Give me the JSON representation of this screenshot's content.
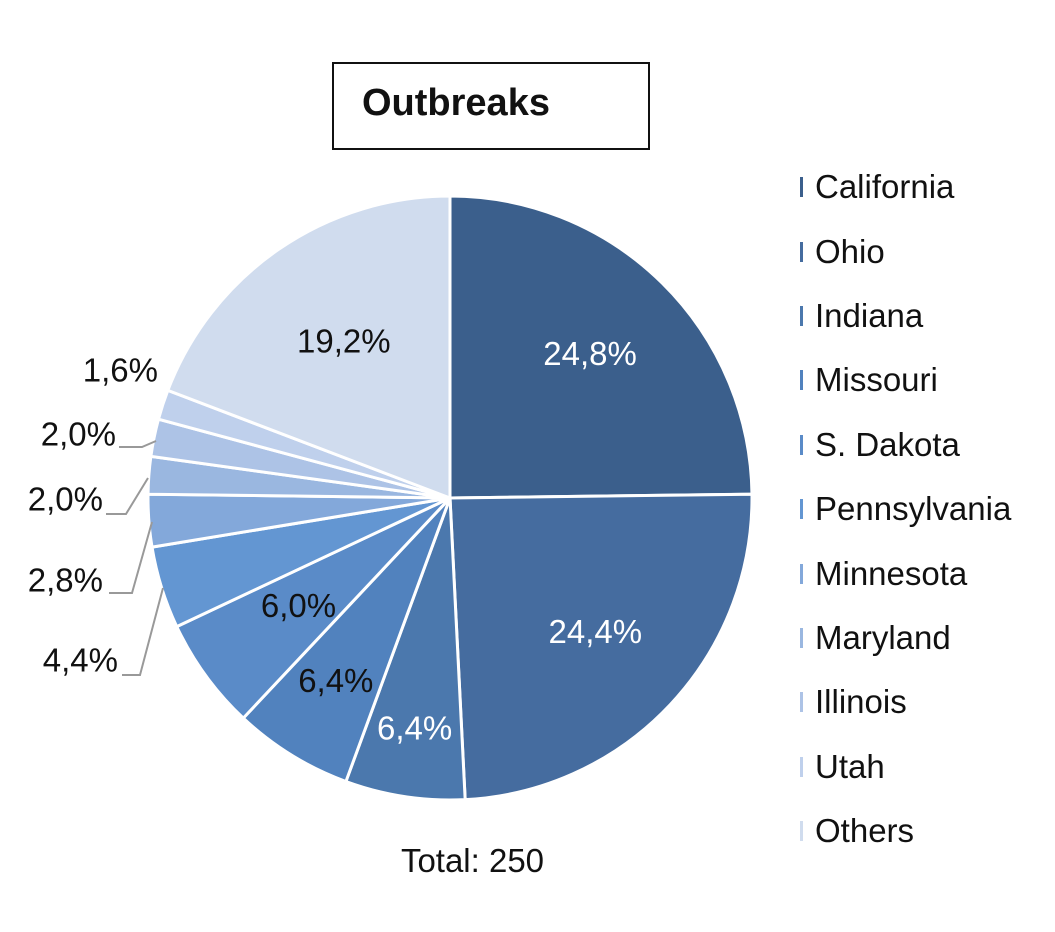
{
  "chart_data": {
    "type": "pie",
    "title": "Outbreaks",
    "total_label": "Total: 250",
    "categories": [
      "California",
      "Ohio",
      "Indiana",
      "Missouri",
      "S. Dakota",
      "Pennsylvania",
      "Minnesota",
      "Maryland",
      "Illinois",
      "Utah",
      "Others"
    ],
    "values": [
      24.8,
      24.4,
      6.4,
      6.4,
      6.0,
      4.4,
      2.8,
      2.0,
      2.0,
      1.6,
      19.2
    ],
    "data_labels": [
      "24,8%",
      "24,4%",
      "6,4%",
      "6,4%",
      "6,0%",
      "4,4%",
      "2,8%",
      "2,0%",
      "2,0%",
      "1,6%",
      "19,2%"
    ],
    "colors": [
      "#3b5f8c",
      "#456c9f",
      "#4b78ad",
      "#5182be",
      "#5a8bc8",
      "#6396d2",
      "#83a8da",
      "#9ab7e0",
      "#adc3e6",
      "#bfd0ec",
      "#d0dcee"
    ],
    "label_colors": [
      "#ffffff",
      "#ffffff",
      "#ffffff",
      "#111111",
      "#111111",
      "#111111",
      "#111111",
      "#111111",
      "#111111",
      "#111111",
      "#111111"
    ],
    "legend_position": "right"
  }
}
